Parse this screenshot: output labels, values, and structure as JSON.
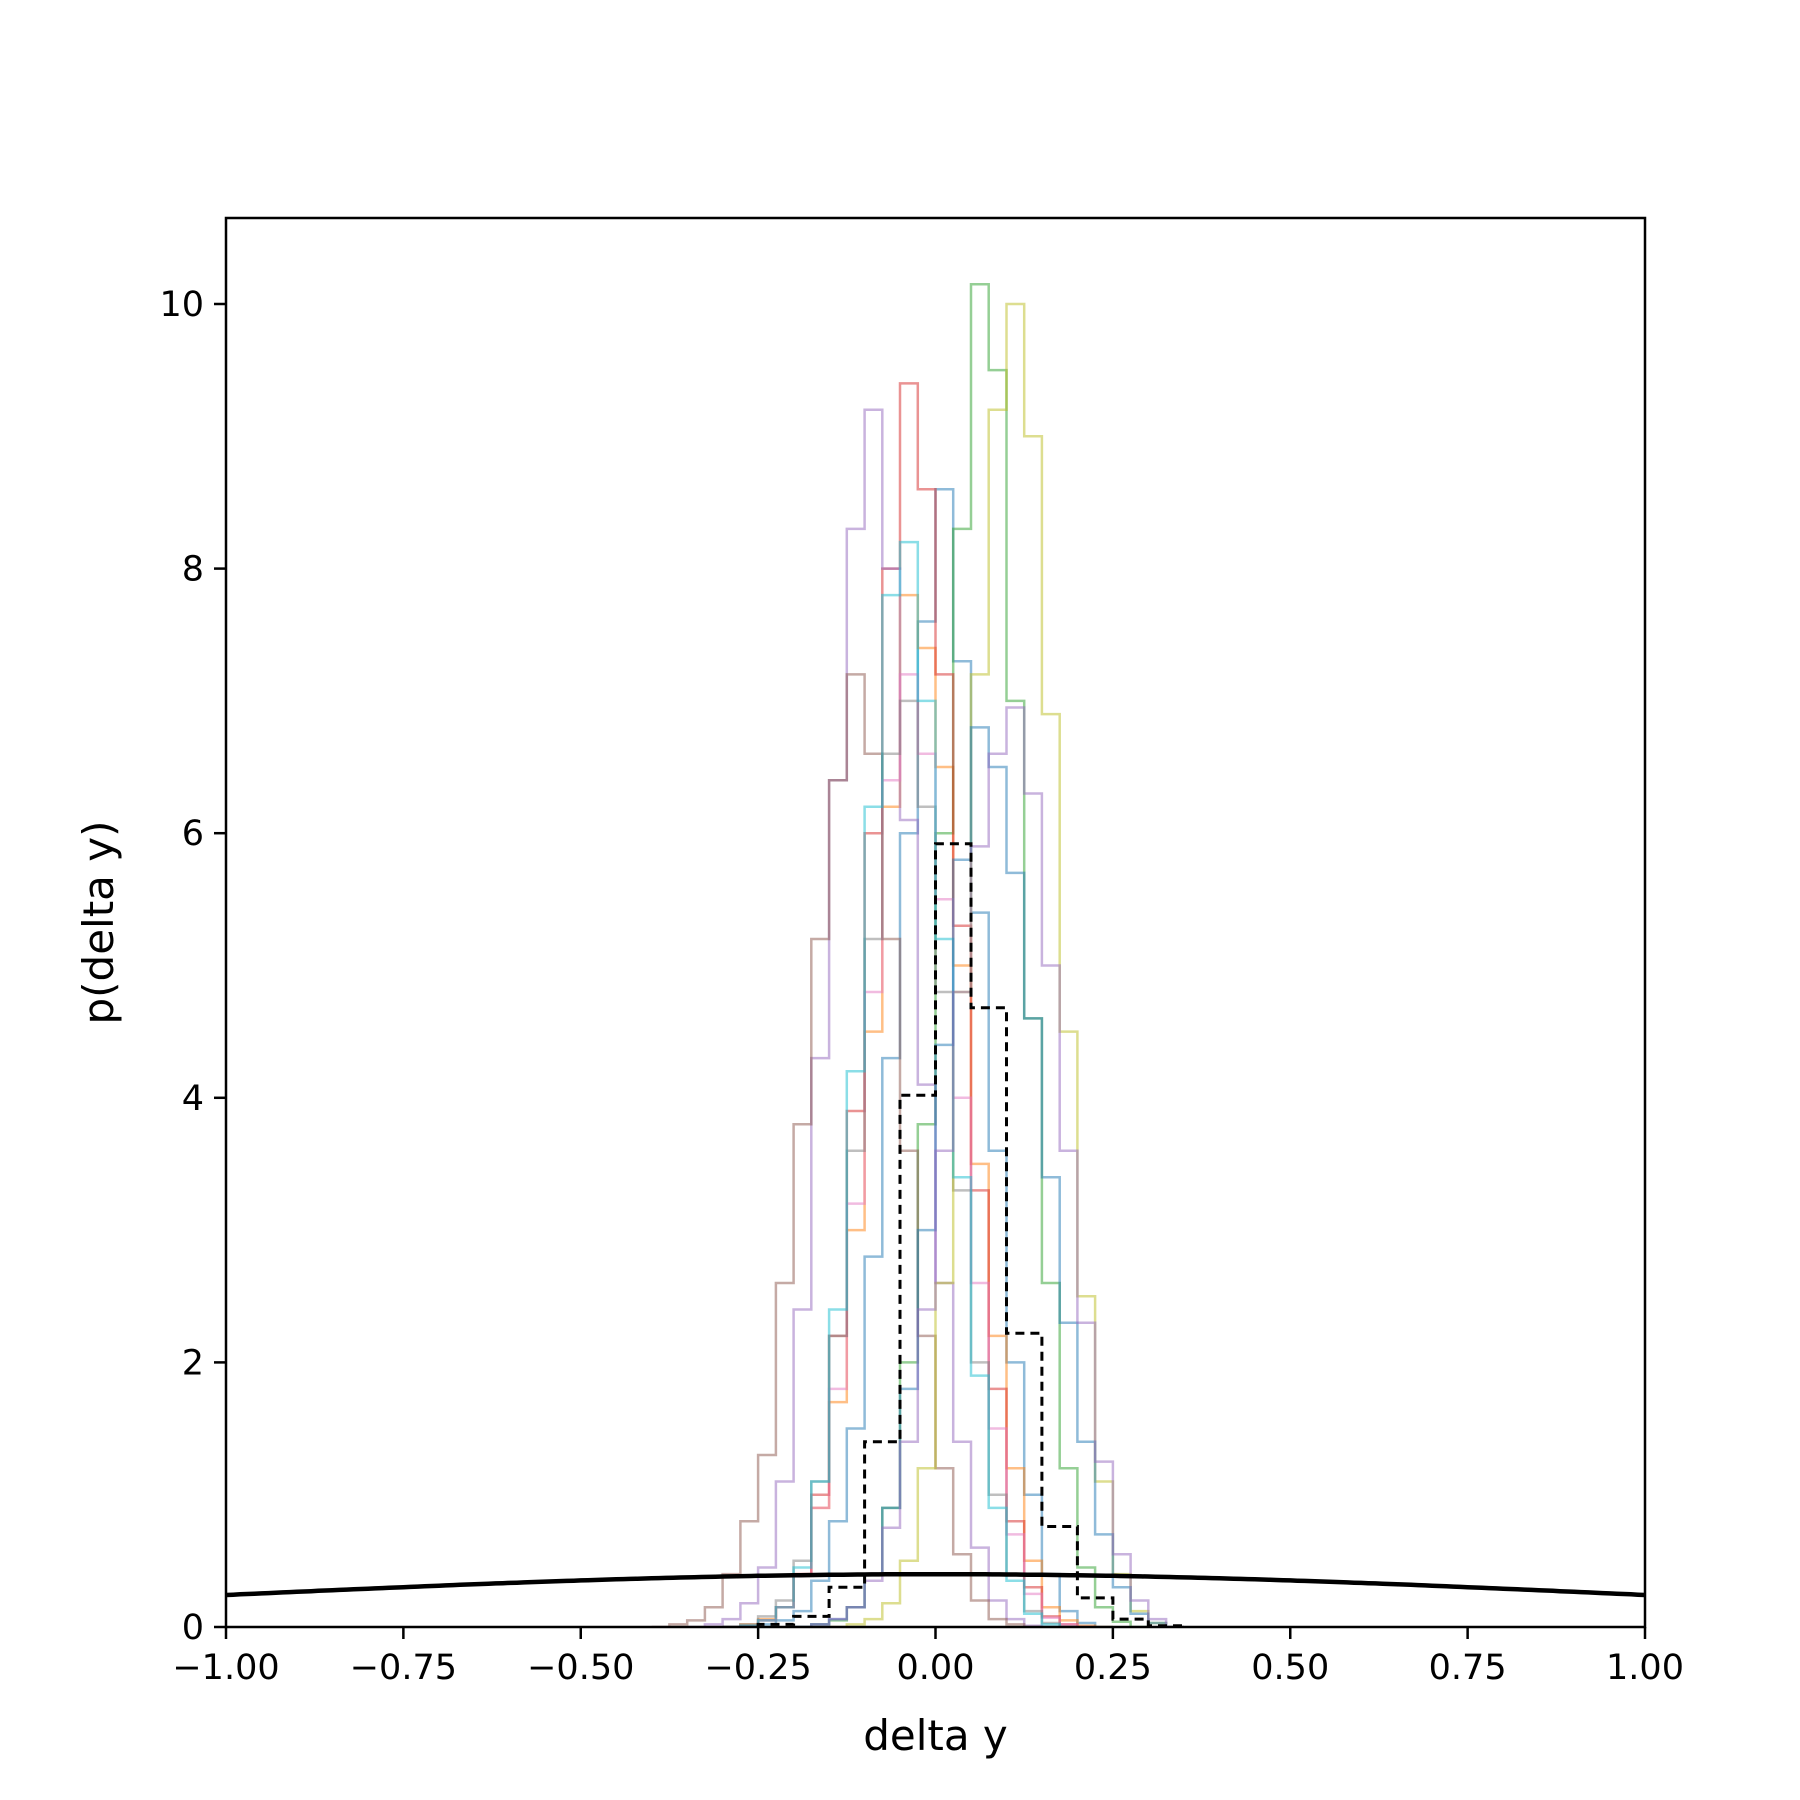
{
  "chart_data": {
    "type": "histogram-step",
    "title": "",
    "xlabel": "delta y",
    "ylabel": "p(delta y)",
    "xlim": [
      -1.0,
      1.0
    ],
    "ylim": [
      0,
      10.65
    ],
    "xticks": [
      -1.0,
      -0.75,
      -0.5,
      -0.25,
      0.0,
      0.25,
      0.5,
      0.75,
      1.0
    ],
    "xtick_labels": [
      "−1.00",
      "−0.75",
      "−0.50",
      "−0.25",
      "0.00",
      "0.25",
      "0.50",
      "0.75",
      "1.00"
    ],
    "yticks": [
      0,
      2,
      4,
      6,
      8,
      10
    ],
    "ytick_labels": [
      "0",
      "2",
      "4",
      "6",
      "8",
      "10"
    ],
    "grid": false,
    "legend": "none",
    "series": [
      {
        "color": "#1f77b4",
        "x0": -0.3,
        "bin_width": 0.025,
        "values": [
          0,
          0,
          0.02,
          0.05,
          0.12,
          0.35,
          0.8,
          1.5,
          2.8,
          4.3,
          6.0,
          7.6,
          8.6,
          7.3,
          5.4,
          3.6,
          2.0,
          1.0,
          0.4,
          0.12,
          0.03,
          0
        ]
      },
      {
        "color": "#ff7f0e",
        "x0": -0.3,
        "bin_width": 0.025,
        "values": [
          0,
          0.02,
          0.06,
          0.15,
          0.4,
          0.9,
          1.7,
          3.0,
          4.5,
          6.2,
          7.8,
          7.4,
          6.5,
          5.0,
          3.5,
          2.2,
          1.2,
          0.5,
          0.15,
          0.05,
          0.01,
          0
        ]
      },
      {
        "color": "#2ca02c",
        "x0": -0.2,
        "bin_width": 0.025,
        "values": [
          0,
          0.02,
          0.05,
          0.15,
          0.4,
          0.9,
          2.0,
          3.8,
          6.0,
          8.3,
          10.15,
          9.5,
          7.0,
          4.6,
          2.6,
          1.2,
          0.45,
          0.15,
          0.04,
          0
        ]
      },
      {
        "color": "#d62728",
        "x0": -0.3,
        "bin_width": 0.025,
        "values": [
          0,
          0.01,
          0.05,
          0.15,
          0.4,
          1.0,
          2.2,
          3.9,
          6.0,
          8.0,
          9.4,
          8.6,
          7.2,
          5.3,
          3.3,
          1.8,
          0.8,
          0.3,
          0.08,
          0.02,
          0
        ]
      },
      {
        "color": "#9467bd",
        "x0": -0.35,
        "bin_width": 0.025,
        "values": [
          0,
          0.02,
          0.06,
          0.18,
          0.45,
          1.1,
          2.4,
          4.3,
          6.4,
          8.3,
          9.2,
          8.0,
          6.1,
          4.1,
          2.6,
          1.4,
          0.6,
          0.2,
          0.06,
          0.01,
          0
        ]
      },
      {
        "color": "#8c564b",
        "x0": -0.4,
        "bin_width": 0.025,
        "values": [
          0,
          0.02,
          0.05,
          0.15,
          0.4,
          0.8,
          1.3,
          2.6,
          3.8,
          5.2,
          6.4,
          7.2,
          6.6,
          5.2,
          3.6,
          2.2,
          1.2,
          0.55,
          0.2,
          0.06,
          0.02,
          0
        ]
      },
      {
        "color": "#e377c2",
        "x0": -0.3,
        "bin_width": 0.025,
        "values": [
          0,
          0.01,
          0.05,
          0.15,
          0.4,
          0.9,
          1.8,
          3.2,
          4.8,
          6.4,
          7.2,
          6.6,
          5.5,
          4.0,
          2.6,
          1.5,
          0.7,
          0.25,
          0.07,
          0.02,
          0
        ]
      },
      {
        "color": "#7f7f7f",
        "x0": -0.3,
        "bin_width": 0.025,
        "values": [
          0,
          0.02,
          0.08,
          0.2,
          0.5,
          1.1,
          2.2,
          3.6,
          5.2,
          6.6,
          7.0,
          6.2,
          4.8,
          3.3,
          2.0,
          1.0,
          0.4,
          0.12,
          0.03,
          0
        ]
      },
      {
        "color": "#bcbd22",
        "x0": -0.15,
        "bin_width": 0.025,
        "values": [
          0,
          0.02,
          0.06,
          0.18,
          0.5,
          1.2,
          2.6,
          4.8,
          7.2,
          9.2,
          10.0,
          9.0,
          6.9,
          4.5,
          2.5,
          1.1,
          0.4,
          0.12,
          0.03,
          0
        ]
      },
      {
        "color": "#17becf",
        "x0": -0.3,
        "bin_width": 0.025,
        "values": [
          0,
          0.01,
          0.05,
          0.15,
          0.45,
          1.1,
          2.4,
          4.2,
          6.2,
          7.8,
          8.2,
          7.0,
          5.2,
          3.4,
          1.9,
          0.9,
          0.35,
          0.1,
          0.02,
          0
        ]
      },
      {
        "color": "#1f77b4",
        "x0": -0.2,
        "bin_width": 0.025,
        "values": [
          0,
          0.02,
          0.06,
          0.15,
          0.4,
          0.9,
          1.8,
          3.0,
          4.4,
          5.8,
          6.8,
          6.5,
          5.7,
          4.6,
          3.4,
          2.3,
          1.4,
          0.7,
          0.3,
          0.1,
          0.03,
          0
        ]
      },
      {
        "color": "#9467bd",
        "x0": -0.2,
        "bin_width": 0.025,
        "values": [
          0,
          0.02,
          0.06,
          0.15,
          0.35,
          0.75,
          1.4,
          2.4,
          3.6,
          4.8,
          5.9,
          6.6,
          6.95,
          6.3,
          5.0,
          3.6,
          2.3,
          1.25,
          0.55,
          0.2,
          0.06,
          0
        ]
      }
    ],
    "reference_histogram": {
      "color": "#000000",
      "style": "dashed",
      "x0": -0.25,
      "bin_width": 0.05,
      "values": [
        0.02,
        0.08,
        0.3,
        1.4,
        4.02,
        5.92,
        4.68,
        2.22,
        0.76,
        0.22,
        0.06,
        0.01
      ]
    },
    "curve": {
      "type": "gaussian-pdf",
      "mean": 0.0,
      "std": 1.0,
      "color": "#000000"
    }
  }
}
